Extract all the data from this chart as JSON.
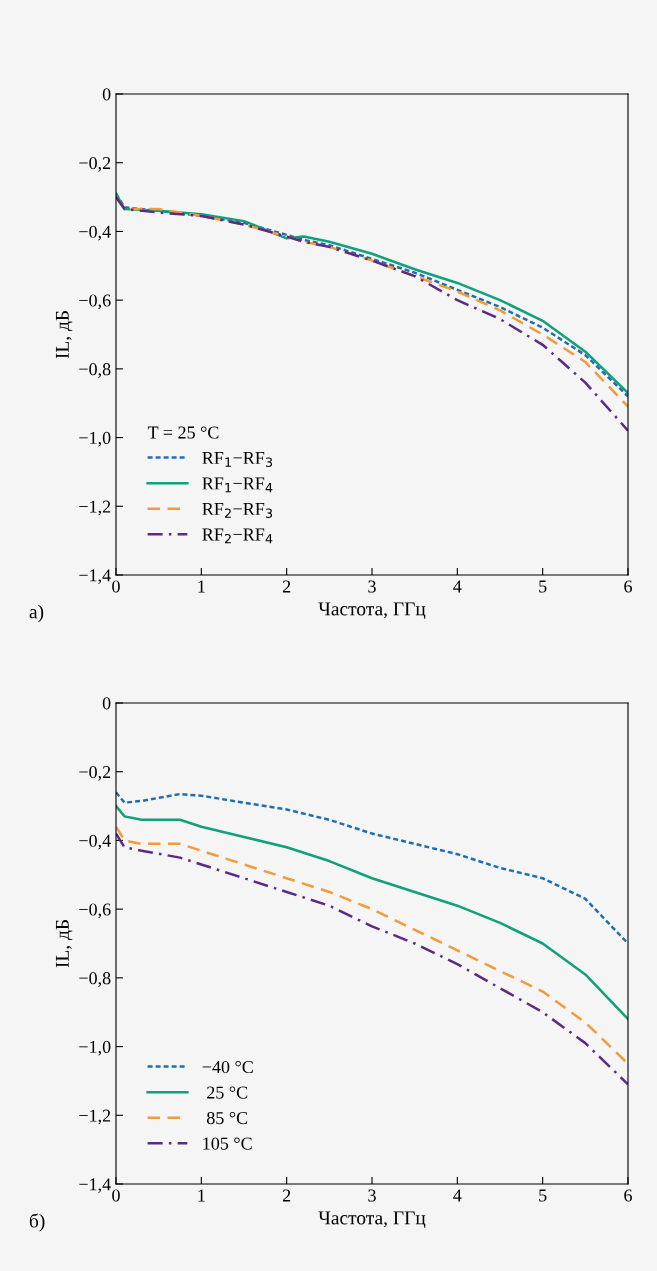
{
  "chart_data": [
    {
      "type": "line",
      "xlabel": "Частота, ГГц",
      "ylabel": "IL, дБ",
      "legend_title": "T = 25 °C",
      "annotations": [
        "а)"
      ],
      "legend": "bottom left",
      "grid": false,
      "xlim": [
        0,
        6
      ],
      "xticks": [
        0,
        1,
        2,
        3,
        4,
        5,
        6
      ],
      "ylim": [
        -1.4,
        0
      ],
      "yticks": [
        {
          "value": -1.4,
          "label": "−1,4"
        },
        {
          "value": -1.2,
          "label": "−1,2"
        },
        {
          "value": -1.0,
          "label": "−1,0"
        },
        {
          "value": -0.8,
          "label": "−0,8"
        },
        {
          "value": -0.6,
          "label": "−0,6"
        },
        {
          "value": -0.4,
          "label": "−0,4"
        },
        {
          "value": -0.2,
          "label": "−0,2"
        },
        {
          "value": 0,
          "label": "0"
        }
      ],
      "x": [
        0,
        0.1,
        0.5,
        1,
        1.5,
        2,
        2.2,
        2.5,
        3,
        3.5,
        4,
        4.5,
        5,
        5.5,
        6
      ],
      "series": [
        {
          "name": "RF$_{1}$−RF$_{3}$",
          "color": "#1f6eb5",
          "line_style": "dotted",
          "values": [
            -0.29,
            -0.33,
            -0.34,
            -0.355,
            -0.375,
            -0.41,
            -0.425,
            -0.44,
            -0.48,
            -0.52,
            -0.57,
            -0.62,
            -0.68,
            -0.76,
            -0.88
          ]
        },
        {
          "name": "RF$_{1}$−RF$_{4}$",
          "color": "#10a07a",
          "line_style": "solid",
          "values": [
            -0.29,
            -0.335,
            -0.34,
            -0.35,
            -0.37,
            -0.42,
            -0.415,
            -0.43,
            -0.465,
            -0.51,
            -0.55,
            -0.6,
            -0.66,
            -0.75,
            -0.87
          ]
        },
        {
          "name": "RF$_{2}$−RF$_{3}$",
          "color": "#f39a3b",
          "line_style": "dashed",
          "values": [
            -0.3,
            -0.335,
            -0.335,
            -0.355,
            -0.38,
            -0.415,
            -0.43,
            -0.445,
            -0.485,
            -0.53,
            -0.575,
            -0.63,
            -0.7,
            -0.78,
            -0.91
          ]
        },
        {
          "name": "RF$_{2}$−RF$_{4}$",
          "color": "#5b2a86",
          "line_style": "dashdot",
          "values": [
            -0.3,
            -0.335,
            -0.345,
            -0.355,
            -0.38,
            -0.415,
            -0.43,
            -0.445,
            -0.485,
            -0.53,
            -0.6,
            -0.655,
            -0.73,
            -0.84,
            -0.98
          ]
        }
      ]
    },
    {
      "type": "line",
      "xlabel": "Частота, ГГц",
      "ylabel": "IL, дБ",
      "annotations": [
        "б)"
      ],
      "legend": "bottom left",
      "grid": false,
      "xlim": [
        0,
        6
      ],
      "xticks": [
        0,
        1,
        2,
        3,
        4,
        5,
        6
      ],
      "ylim": [
        -1.4,
        0
      ],
      "yticks": [
        {
          "value": -1.4,
          "label": "−1,4"
        },
        {
          "value": -1.2,
          "label": "−1,2"
        },
        {
          "value": -1.0,
          "label": "−1,0"
        },
        {
          "value": -0.8,
          "label": "−0,8"
        },
        {
          "value": -0.6,
          "label": "−0,6"
        },
        {
          "value": -0.4,
          "label": "−0,4"
        },
        {
          "value": -0.2,
          "label": "−0,2"
        },
        {
          "value": 0,
          "label": "0"
        }
      ],
      "x": [
        0,
        0.1,
        0.3,
        0.75,
        1,
        1.5,
        2,
        2.5,
        3,
        3.5,
        4,
        4.5,
        5,
        5.5,
        6
      ],
      "series": [
        {
          "name": "−40 °C",
          "color": "#1f6eb5",
          "line_style": "dotted",
          "values": [
            -0.26,
            -0.29,
            -0.285,
            -0.265,
            -0.27,
            -0.29,
            -0.31,
            -0.34,
            -0.38,
            -0.41,
            -0.44,
            -0.48,
            -0.51,
            -0.57,
            -0.7
          ]
        },
        {
          "name": " 25 °C",
          "color": "#10a07a",
          "line_style": "solid",
          "values": [
            -0.3,
            -0.33,
            -0.34,
            -0.34,
            -0.36,
            -0.39,
            -0.42,
            -0.46,
            -0.51,
            -0.55,
            -0.59,
            -0.64,
            -0.7,
            -0.79,
            -0.92
          ]
        },
        {
          "name": " 85 °C",
          "color": "#f39a3b",
          "line_style": "dashed",
          "values": [
            -0.36,
            -0.4,
            -0.41,
            -0.41,
            -0.43,
            -0.47,
            -0.51,
            -0.55,
            -0.6,
            -0.66,
            -0.72,
            -0.78,
            -0.84,
            -0.93,
            -1.05
          ]
        },
        {
          "name": "105 °C",
          "color": "#5b2a86",
          "line_style": "dashdot",
          "values": [
            -0.38,
            -0.42,
            -0.43,
            -0.45,
            -0.47,
            -0.51,
            -0.55,
            -0.59,
            -0.65,
            -0.7,
            -0.76,
            -0.83,
            -0.9,
            -0.99,
            -1.11
          ]
        }
      ]
    }
  ]
}
